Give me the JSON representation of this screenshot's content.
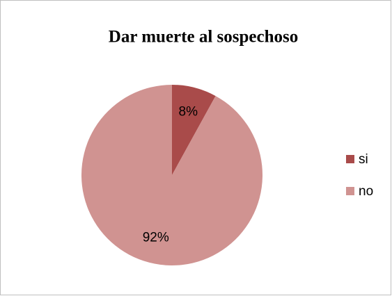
{
  "chart_data": {
    "type": "pie",
    "title": "Dar muerte al sospechoso",
    "categories": [
      "si",
      "no"
    ],
    "values": [
      8,
      92
    ],
    "value_labels": [
      "8%",
      "92%"
    ],
    "colors": [
      "#a94b4a",
      "#d09391"
    ],
    "legend": "right"
  }
}
